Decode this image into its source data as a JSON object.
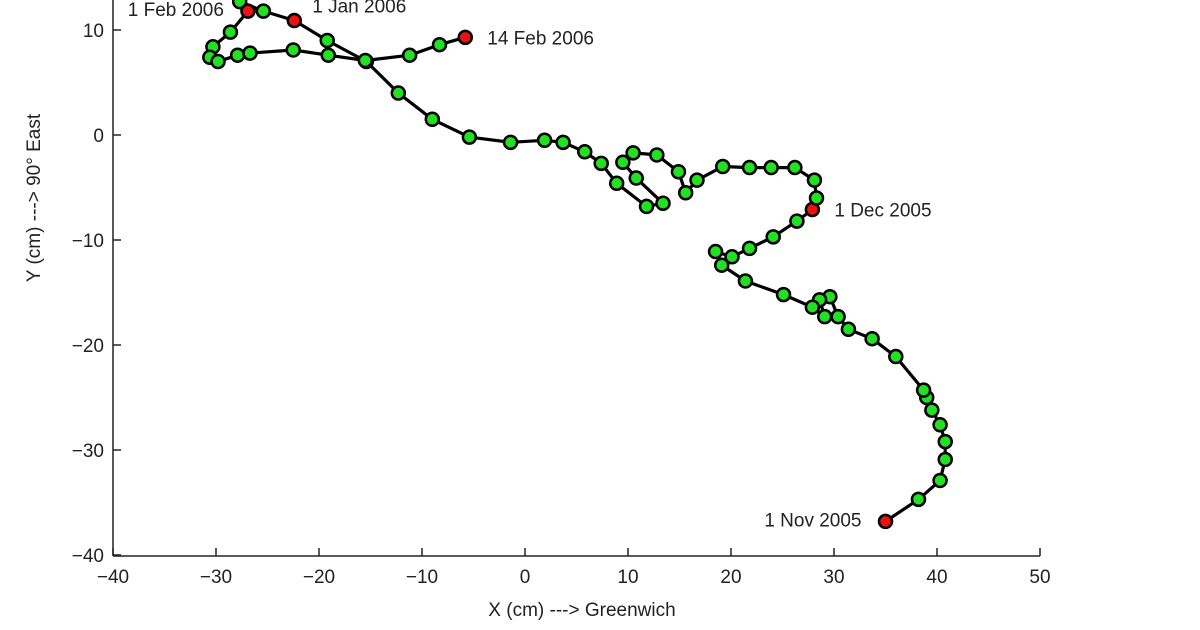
{
  "chart_data": {
    "type": "line",
    "xlabel": "X (cm) ---> Greenwich",
    "ylabel": "Y (cm) ---> 90° East",
    "xlim": [
      -40,
      50
    ],
    "ylim": [
      -40,
      13
    ],
    "xticks": [
      "−40",
      "−30",
      "−20",
      "−10",
      "0",
      "10",
      "20",
      "30",
      "40",
      "50"
    ],
    "yticks": [
      "−40",
      "−30",
      "−20",
      "−10",
      "0",
      "10"
    ],
    "xtick_values": [
      -40,
      -30,
      -20,
      -10,
      0,
      10,
      20,
      30,
      40,
      50
    ],
    "ytick_values": [
      -40,
      -30,
      -20,
      -10,
      0,
      10
    ],
    "grid": false,
    "colors": {
      "line": "#000000",
      "marker": "#22e022",
      "highlight": "#ee1111"
    },
    "points": [
      [
        35.0,
        -36.8
      ],
      [
        38.2,
        -34.7
      ],
      [
        40.3,
        -32.9
      ],
      [
        40.8,
        -30.9
      ],
      [
        40.8,
        -29.2
      ],
      [
        40.3,
        -27.6
      ],
      [
        39.5,
        -26.2
      ],
      [
        39.0,
        -25.0
      ],
      [
        38.7,
        -24.3
      ],
      [
        36.0,
        -21.1
      ],
      [
        33.7,
        -19.4
      ],
      [
        31.4,
        -18.5
      ],
      [
        30.4,
        -17.3
      ],
      [
        29.6,
        -15.4
      ],
      [
        28.6,
        -15.7
      ],
      [
        29.1,
        -17.3
      ],
      [
        27.9,
        -16.4
      ],
      [
        25.1,
        -15.2
      ],
      [
        21.4,
        -13.9
      ],
      [
        19.1,
        -12.4
      ],
      [
        18.5,
        -11.1
      ],
      [
        20.1,
        -11.6
      ],
      [
        21.8,
        -10.8
      ],
      [
        24.1,
        -9.7
      ],
      [
        26.4,
        -8.2
      ],
      [
        27.9,
        -7.1
      ],
      [
        28.3,
        -6.0
      ],
      [
        28.1,
        -4.3
      ],
      [
        26.2,
        -3.1
      ],
      [
        23.9,
        -3.1
      ],
      [
        21.8,
        -3.1
      ],
      [
        19.2,
        -3.0
      ],
      [
        16.7,
        -4.3
      ],
      [
        15.6,
        -5.5
      ],
      [
        14.9,
        -3.5
      ],
      [
        12.8,
        -1.9
      ],
      [
        10.5,
        -1.7
      ],
      [
        9.5,
        -2.6
      ],
      [
        10.8,
        -4.1
      ],
      [
        13.4,
        -6.5
      ],
      [
        11.8,
        -6.8
      ],
      [
        8.9,
        -4.6
      ],
      [
        7.4,
        -2.7
      ],
      [
        5.8,
        -1.6
      ],
      [
        3.7,
        -0.7
      ],
      [
        1.9,
        -0.5
      ],
      [
        -1.4,
        -0.7
      ],
      [
        -5.4,
        -0.2
      ],
      [
        -9.0,
        1.5
      ],
      [
        -12.3,
        4.0
      ],
      [
        -15.4,
        7.0
      ],
      [
        -19.2,
        9.0
      ],
      [
        -22.4,
        10.9
      ],
      [
        -25.4,
        11.8
      ],
      [
        -27.7,
        12.7
      ],
      [
        -26.9,
        11.8
      ],
      [
        -28.6,
        9.8
      ],
      [
        -30.3,
        8.4
      ],
      [
        -30.6,
        7.4
      ],
      [
        -29.8,
        7.0
      ],
      [
        -27.9,
        7.6
      ],
      [
        -26.7,
        7.8
      ],
      [
        -22.5,
        8.1
      ],
      [
        -19.1,
        7.6
      ],
      [
        -15.5,
        7.1
      ],
      [
        -11.2,
        7.6
      ],
      [
        -8.3,
        8.6
      ],
      [
        -5.8,
        9.3
      ]
    ],
    "annotations": [
      {
        "label": "1 Nov 2005",
        "x": 35.0,
        "y": -36.8,
        "side": "left"
      },
      {
        "label": "1 Dec 2005",
        "x": 27.9,
        "y": -7.1,
        "side": "right"
      },
      {
        "label": "1 Jan 2006",
        "x": -22.4,
        "y": 10.9,
        "side": "top-right"
      },
      {
        "label": "1 Feb 2006",
        "x": -26.9,
        "y": 11.8,
        "side": "left"
      },
      {
        "label": "14 Feb 2006",
        "x": -5.8,
        "y": 9.3,
        "side": "right"
      }
    ]
  }
}
